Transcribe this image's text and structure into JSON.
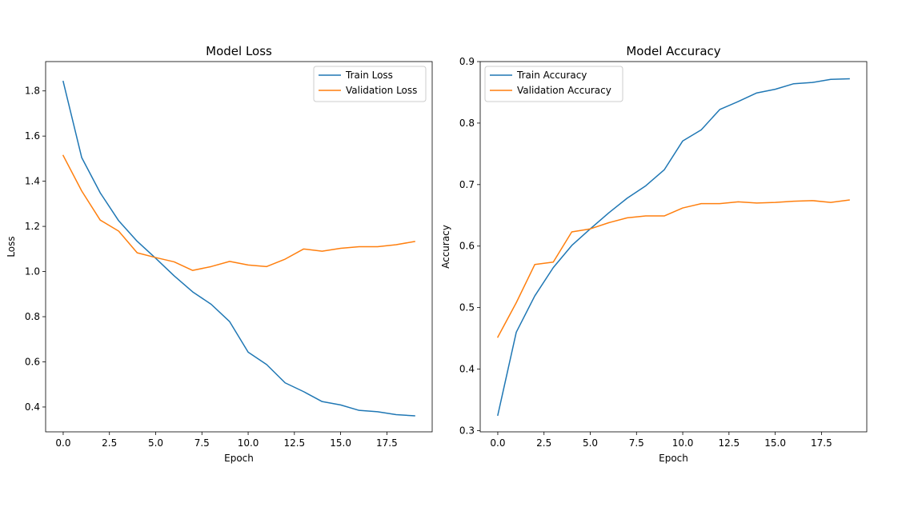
{
  "chart_data": [
    {
      "type": "line",
      "title": "Model Loss",
      "xlabel": "Epoch",
      "ylabel": "Loss",
      "xlim": [
        -0.95,
        19.95
      ],
      "ylim": [
        0.29,
        1.93
      ],
      "xticks": [
        0.0,
        2.5,
        5.0,
        7.5,
        10.0,
        12.5,
        15.0,
        17.5
      ],
      "xtick_labels": [
        "0.0",
        "2.5",
        "5.0",
        "7.5",
        "10.0",
        "12.5",
        "15.0",
        "17.5"
      ],
      "yticks": [
        0.4,
        0.6,
        0.8,
        1.0,
        1.2,
        1.4,
        1.6,
        1.8
      ],
      "ytick_labels": [
        "0.4",
        "0.6",
        "0.8",
        "1.0",
        "1.2",
        "1.4",
        "1.6",
        "1.8"
      ],
      "grid": false,
      "legend_position": "top-right",
      "x": [
        0,
        1,
        2,
        3,
        4,
        5,
        6,
        7,
        8,
        9,
        10,
        11,
        12,
        13,
        14,
        15,
        16,
        17,
        18,
        19
      ],
      "series": [
        {
          "name": "Train Loss",
          "color": "#1f77b4",
          "values": [
            1.842,
            1.505,
            1.349,
            1.225,
            1.134,
            1.059,
            0.981,
            0.91,
            0.855,
            0.778,
            0.643,
            0.588,
            0.507,
            0.468,
            0.424,
            0.409,
            0.385,
            0.379,
            0.366,
            0.361
          ]
        },
        {
          "name": "Validation Loss",
          "color": "#ff7f0e",
          "values": [
            1.514,
            1.357,
            1.228,
            1.179,
            1.083,
            1.062,
            1.043,
            1.005,
            1.022,
            1.045,
            1.029,
            1.022,
            1.055,
            1.1,
            1.09,
            1.103,
            1.11,
            1.11,
            1.119,
            1.133
          ]
        }
      ]
    },
    {
      "type": "line",
      "title": "Model Accuracy",
      "xlabel": "Epoch",
      "ylabel": "Accuracy",
      "xlim": [
        -0.95,
        19.95
      ],
      "ylim": [
        0.298,
        0.9
      ],
      "xticks": [
        0.0,
        2.5,
        5.0,
        7.5,
        10.0,
        12.5,
        15.0,
        17.5
      ],
      "xtick_labels": [
        "0.0",
        "2.5",
        "5.0",
        "7.5",
        "10.0",
        "12.5",
        "15.0",
        "17.5"
      ],
      "yticks": [
        0.3,
        0.4,
        0.5,
        0.6,
        0.7,
        0.8,
        0.9
      ],
      "ytick_labels": [
        "0.3",
        "0.4",
        "0.5",
        "0.6",
        "0.7",
        "0.8",
        "0.9"
      ],
      "grid": false,
      "legend_position": "top-left",
      "x": [
        0,
        1,
        2,
        3,
        4,
        5,
        6,
        7,
        8,
        9,
        10,
        11,
        12,
        13,
        14,
        15,
        16,
        17,
        18,
        19
      ],
      "series": [
        {
          "name": "Train Accuracy",
          "color": "#1f77b4",
          "values": [
            0.325,
            0.46,
            0.519,
            0.565,
            0.601,
            0.628,
            0.654,
            0.678,
            0.698,
            0.724,
            0.771,
            0.789,
            0.822,
            0.835,
            0.849,
            0.855,
            0.864,
            0.866,
            0.871,
            0.872
          ]
        },
        {
          "name": "Validation Accuracy",
          "color": "#ff7f0e",
          "values": [
            0.452,
            0.508,
            0.57,
            0.574,
            0.623,
            0.628,
            0.638,
            0.646,
            0.649,
            0.649,
            0.662,
            0.669,
            0.669,
            0.672,
            0.67,
            0.671,
            0.673,
            0.674,
            0.671,
            0.675
          ]
        }
      ]
    }
  ]
}
